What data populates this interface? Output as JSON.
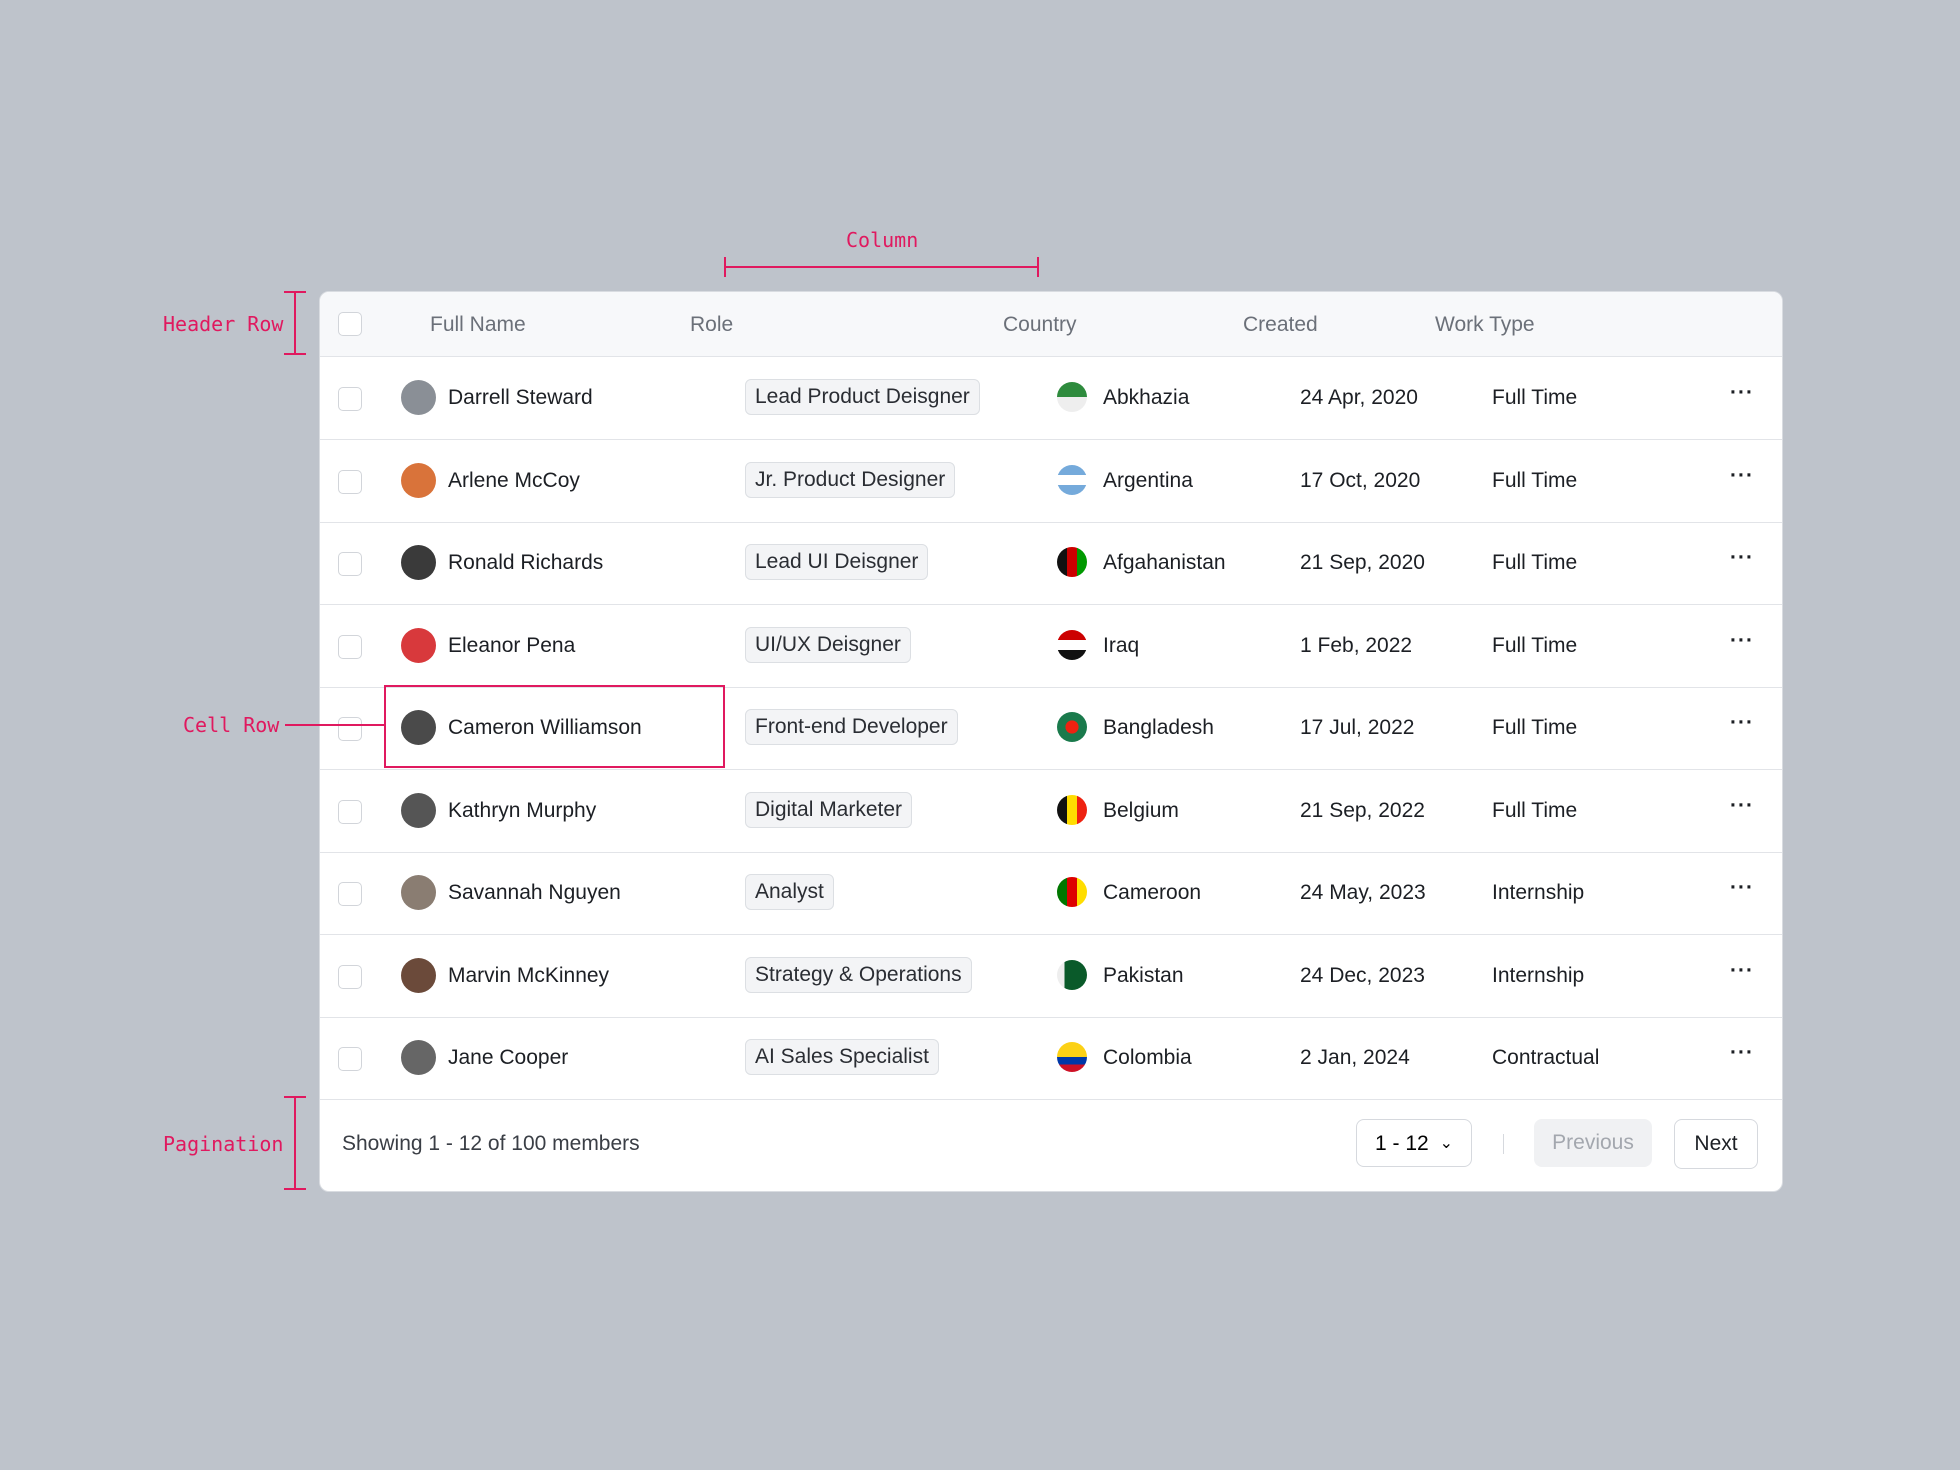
{
  "annotations": {
    "column": "Column",
    "header_row": "Header Row",
    "cell_row": "Cell Row",
    "pagination": "Pagination"
  },
  "table": {
    "headers": [
      "Full Name",
      "Role",
      "Country",
      "Created",
      "Work Type"
    ],
    "rows": [
      [
        "Darrell Steward",
        "Lead Product Deisgner",
        "Abkhazia",
        "24 Apr, 2020",
        "Full Time"
      ],
      [
        "Arlene McCoy",
        "Jr. Product Designer",
        "Argentina",
        "17 Oct, 2020",
        "Full Time"
      ],
      [
        "Ronald Richards",
        "Lead UI Deisgner",
        "Afgahanistan",
        "21 Sep, 2020",
        "Full Time"
      ],
      [
        "Eleanor Pena",
        "UI/UX Deisgner",
        "Iraq",
        "1 Feb, 2022",
        "Full Time"
      ],
      [
        "Cameron Williamson",
        "Front-end Developer",
        "Bangladesh",
        "17 Jul, 2022",
        "Full Time"
      ],
      [
        "Kathryn Murphy",
        "Digital Marketer",
        "Belgium",
        "21 Sep, 2022",
        "Full Time"
      ],
      [
        "Savannah Nguyen",
        "Analyst",
        "Cameroon",
        "24 May, 2023",
        "Internship"
      ],
      [
        "Marvin McKinney",
        "Strategy & Operations",
        "Pakistan",
        "24 Dec, 2023",
        "Internship"
      ],
      [
        "Jane Cooper",
        "AI Sales Specialist",
        "Colombia",
        "2 Jan, 2024",
        "Contractual"
      ]
    ]
  },
  "footer": {
    "summary": "Showing 1 - 12 of 100 members",
    "page_size": "1 - 12",
    "previous": "Previous",
    "next": "Next"
  }
}
